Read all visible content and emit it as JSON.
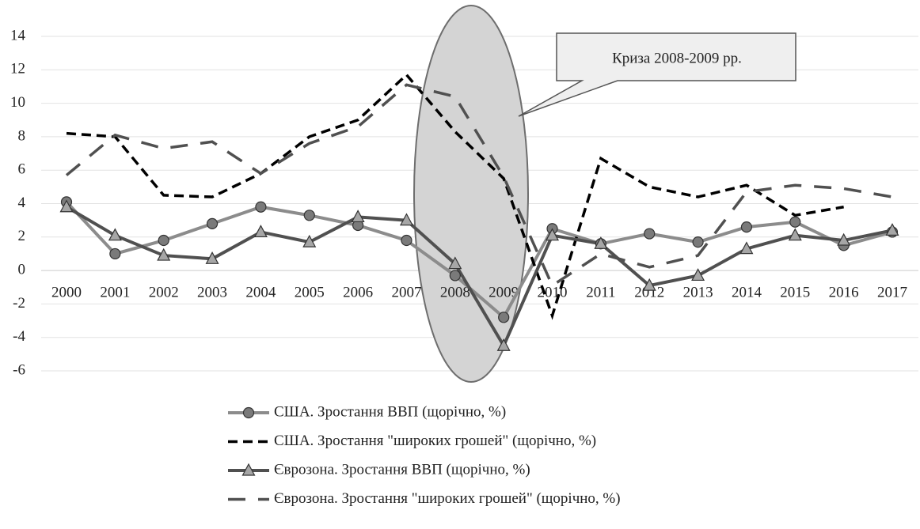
{
  "chart_data": {
    "type": "line",
    "categories": [
      "2000",
      "2001",
      "2002",
      "2003",
      "2004",
      "2005",
      "2006",
      "2007",
      "2008",
      "2009",
      "2010",
      "2011",
      "2012",
      "2013",
      "2014",
      "2015",
      "2016",
      "2017"
    ],
    "series": [
      {
        "name": "США. Зростання ВВП (щорічно, %)",
        "color": "#8c8c8c",
        "marker": "circle",
        "dash": "solid",
        "values": [
          4.1,
          1.0,
          1.8,
          2.8,
          3.8,
          3.3,
          2.7,
          1.8,
          -0.3,
          -2.8,
          2.5,
          1.6,
          2.2,
          1.7,
          2.6,
          2.9,
          1.5,
          2.3
        ]
      },
      {
        "name": "США. Зростання \"широких грошей\" (щорічно, %)",
        "color": "#000000",
        "marker": "none",
        "dash": "short",
        "values": [
          8.2,
          8.0,
          4.5,
          4.4,
          5.8,
          8.0,
          9.0,
          11.7,
          8.3,
          5.5,
          -2.7,
          6.7,
          5.0,
          4.4,
          5.1,
          3.3,
          3.8,
          null
        ]
      },
      {
        "name": "Єврозона. Зростання ВВП (щорічно, %)",
        "color": "#505050",
        "marker": "triangle",
        "dash": "solid",
        "values": [
          3.8,
          2.1,
          0.9,
          0.7,
          2.3,
          1.7,
          3.2,
          3.0,
          0.4,
          -4.5,
          2.1,
          1.6,
          -0.9,
          -0.3,
          1.3,
          2.1,
          1.8,
          2.4
        ]
      },
      {
        "name": "Єврозона. Зростання \"широких грошей\" (щорічно, %)",
        "color": "#505050",
        "marker": "none",
        "dash": "long",
        "values": [
          5.7,
          8.1,
          7.3,
          7.7,
          5.8,
          7.6,
          8.6,
          11.1,
          10.4,
          5.6,
          -0.9,
          1.0,
          0.2,
          0.9,
          4.7,
          5.1,
          4.9,
          4.4
        ]
      }
    ],
    "annotation": "Криза 2008-2009 рр.",
    "ylim": [
      -6,
      14
    ],
    "yticks": [
      -6,
      -4,
      -2,
      0,
      2,
      4,
      6,
      8,
      10,
      12,
      14
    ],
    "grid": true
  }
}
